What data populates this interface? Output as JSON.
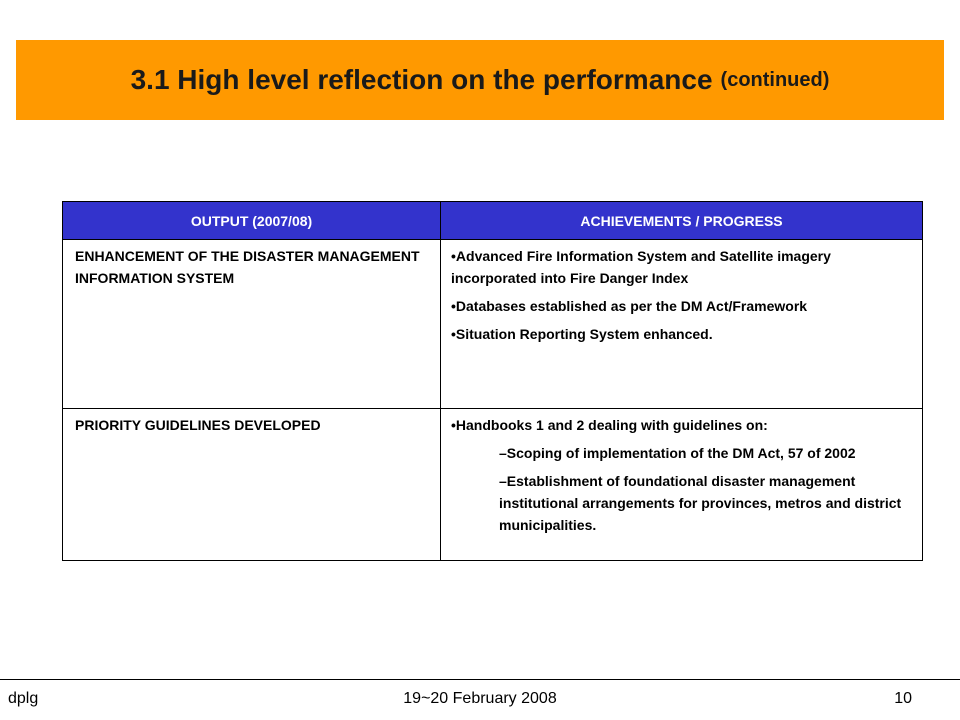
{
  "title": {
    "main": "3.1 High level reflection on the performance",
    "sub": "(continued)"
  },
  "table": {
    "headers": [
      "OUTPUT (2007/08)",
      "ACHIEVEMENTS / PROGRESS"
    ],
    "rows": [
      {
        "output": "ENHANCEMENT OF THE DISASTER MANAGEMENT INFORMATION SYSTEM",
        "achievements": [
          "•Advanced Fire Information System and Satellite imagery incorporated into Fire Danger Index",
          "•Databases established as per the DM Act/Framework",
          "•Situation Reporting System enhanced."
        ]
      },
      {
        "output": "PRIORITY GUIDELINES DEVELOPED",
        "achievements": [
          "•Handbooks 1 and 2 dealing with guidelines on:"
        ],
        "sub_items": [
          "–Scoping of implementation of the DM Act, 57 of 2002",
          "–Establishment of foundational disaster management institutional arrangements  for provinces, metros and district municipalities."
        ]
      }
    ]
  },
  "footer": {
    "left": "dplg",
    "center": "19~20 February 2008",
    "right": "10"
  },
  "colors": {
    "title_bar": "#ff9900",
    "header_bg": "#3333cc"
  }
}
